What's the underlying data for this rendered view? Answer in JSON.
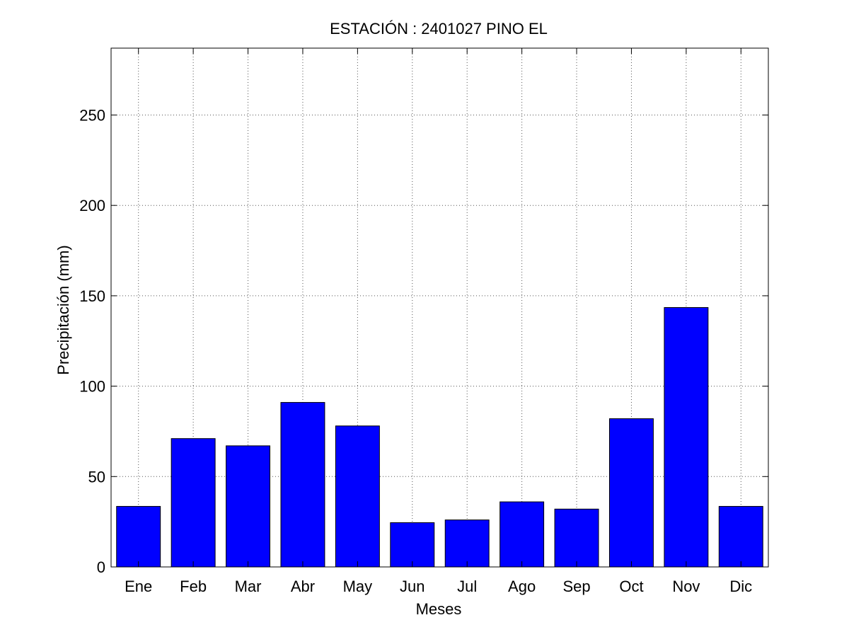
{
  "chart_data": {
    "type": "bar",
    "title": "ESTACIÓN :  2401027  PINO EL",
    "xlabel": "Meses",
    "ylabel": "Precipitación (mm)",
    "categories": [
      "Ene",
      "Feb",
      "Mar",
      "Abr",
      "May",
      "Jun",
      "Jul",
      "Ago",
      "Sep",
      "Oct",
      "Nov",
      "Dic"
    ],
    "values": [
      33.5,
      71,
      67,
      91,
      78,
      24.5,
      26,
      36,
      32,
      82,
      143.5,
      33.5
    ],
    "ylim": [
      0,
      287
    ],
    "yticks": [
      0,
      50,
      100,
      150,
      200,
      250
    ],
    "grid": true,
    "bar_color": "#0000ff",
    "bar_edge_color": "#000000"
  }
}
